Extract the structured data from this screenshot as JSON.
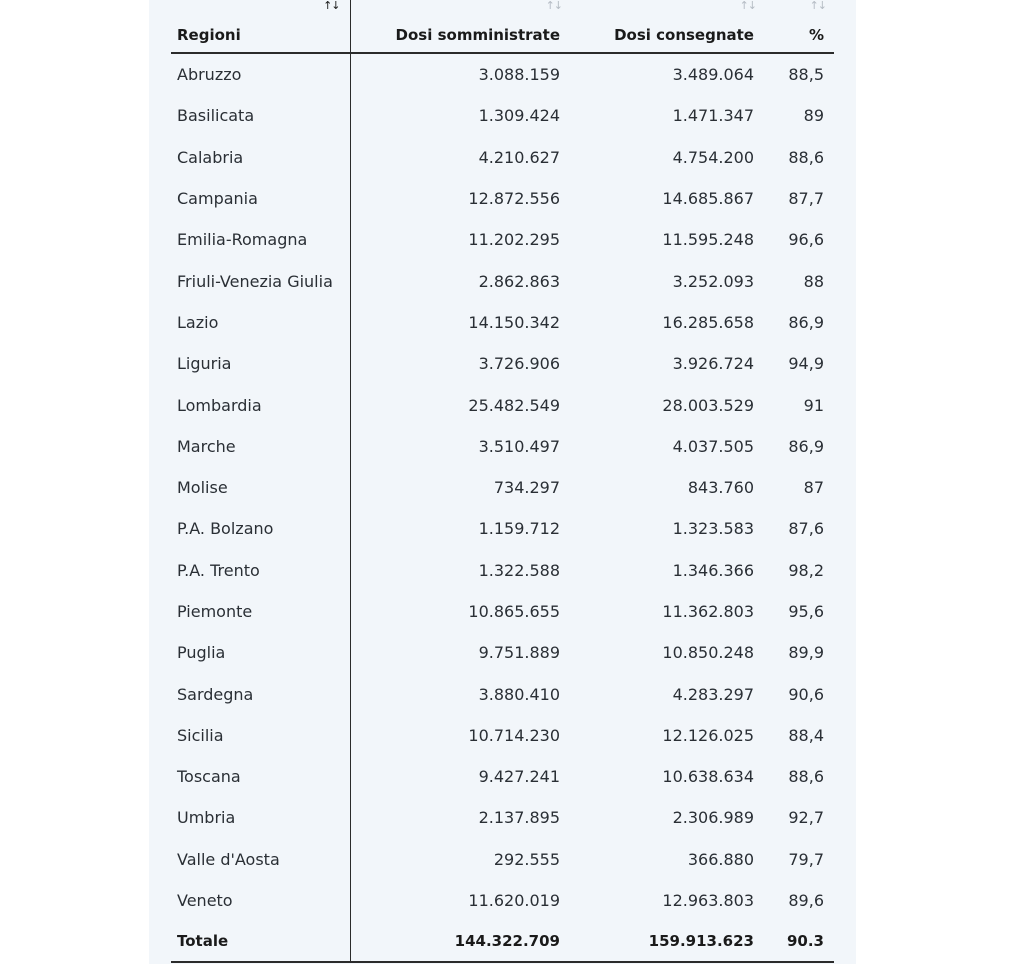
{
  "table": {
    "headers": {
      "region": "Regioni",
      "administered": "Dosi somministrate",
      "delivered": "Dosi consegnate",
      "percent": "%"
    },
    "sort_icons": {
      "region": "↑↓",
      "administered": "↑↓",
      "delivered": "↑↓",
      "percent": "↑↓"
    },
    "rows": [
      {
        "region": "Abruzzo",
        "administered": "3.088.159",
        "delivered": "3.489.064",
        "percent": "88,5"
      },
      {
        "region": "Basilicata",
        "administered": "1.309.424",
        "delivered": "1.471.347",
        "percent": "89"
      },
      {
        "region": "Calabria",
        "administered": "4.210.627",
        "delivered": "4.754.200",
        "percent": "88,6"
      },
      {
        "region": "Campania",
        "administered": "12.872.556",
        "delivered": "14.685.867",
        "percent": "87,7"
      },
      {
        "region": "Emilia-Romagna",
        "administered": "11.202.295",
        "delivered": "11.595.248",
        "percent": "96,6"
      },
      {
        "region": "Friuli-Venezia Giulia",
        "administered": "2.862.863",
        "delivered": "3.252.093",
        "percent": "88"
      },
      {
        "region": "Lazio",
        "administered": "14.150.342",
        "delivered": "16.285.658",
        "percent": "86,9"
      },
      {
        "region": "Liguria",
        "administered": "3.726.906",
        "delivered": "3.926.724",
        "percent": "94,9"
      },
      {
        "region": "Lombardia",
        "administered": "25.482.549",
        "delivered": "28.003.529",
        "percent": "91"
      },
      {
        "region": "Marche",
        "administered": "3.510.497",
        "delivered": "4.037.505",
        "percent": "86,9"
      },
      {
        "region": "Molise",
        "administered": "734.297",
        "delivered": "843.760",
        "percent": "87"
      },
      {
        "region": "P.A. Bolzano",
        "administered": "1.159.712",
        "delivered": "1.323.583",
        "percent": "87,6"
      },
      {
        "region": "P.A. Trento",
        "administered": "1.322.588",
        "delivered": "1.346.366",
        "percent": "98,2"
      },
      {
        "region": "Piemonte",
        "administered": "10.865.655",
        "delivered": "11.362.803",
        "percent": "95,6"
      },
      {
        "region": "Puglia",
        "administered": "9.751.889",
        "delivered": "10.850.248",
        "percent": "89,9"
      },
      {
        "region": "Sardegna",
        "administered": "3.880.410",
        "delivered": "4.283.297",
        "percent": "90,6"
      },
      {
        "region": "Sicilia",
        "administered": "10.714.230",
        "delivered": "12.126.025",
        "percent": "88,4"
      },
      {
        "region": "Toscana",
        "administered": "9.427.241",
        "delivered": "10.638.634",
        "percent": "88,6"
      },
      {
        "region": "Umbria",
        "administered": "2.137.895",
        "delivered": "2.306.989",
        "percent": "92,7"
      },
      {
        "region": "Valle d'Aosta",
        "administered": "292.555",
        "delivered": "366.880",
        "percent": "79,7"
      },
      {
        "region": "Veneto",
        "administered": "11.620.019",
        "delivered": "12.963.803",
        "percent": "89,6"
      }
    ],
    "total": {
      "region": "Totale",
      "administered": "144.322.709",
      "delivered": "159.913.623",
      "percent": "90.3"
    }
  },
  "colors": {
    "panel_background": "#f2f6fa",
    "text": "#2a2f35",
    "rule": "#2b2b2b",
    "inactive_sort_icon": "#b5bcc4"
  }
}
